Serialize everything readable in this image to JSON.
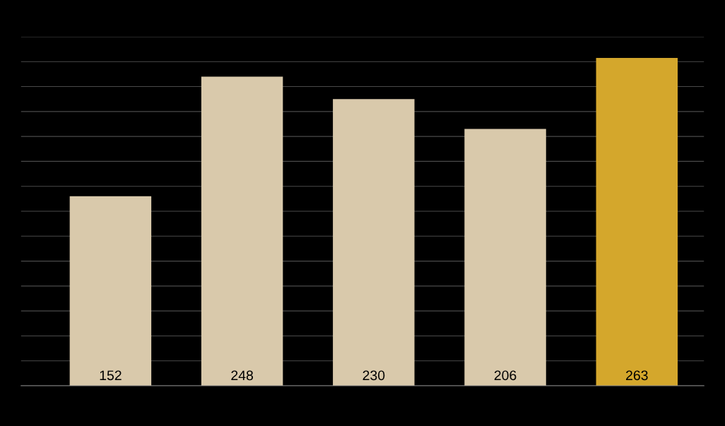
{
  "chart_data": {
    "type": "bar",
    "categories": [
      null,
      null,
      null,
      null,
      null
    ],
    "values": [
      152,
      248,
      230,
      206,
      263
    ],
    "colors": [
      "#d9c9ab",
      "#d9c9ab",
      "#d9c9ab",
      "#d9c9ab",
      "#d4a72c"
    ],
    "ylim": [
      0,
      280
    ],
    "yticks": [
      {
        "value": 0,
        "label": null
      },
      {
        "value": 20,
        "label": null
      },
      {
        "value": 40,
        "label": null
      },
      {
        "value": 60,
        "label": null
      },
      {
        "value": 80,
        "label": null
      },
      {
        "value": 100,
        "label": null
      },
      {
        "value": 120,
        "label": null
      },
      {
        "value": 140,
        "label": null
      },
      {
        "value": 160,
        "label": null
      },
      {
        "value": 180,
        "label": null
      },
      {
        "value": 200,
        "label": null
      },
      {
        "value": 220,
        "label": null
      },
      {
        "value": 240,
        "label": null
      },
      {
        "value": 260,
        "label": null
      },
      {
        "value": 280,
        "label": null
      }
    ],
    "grid": "y",
    "data_labels": true
  }
}
